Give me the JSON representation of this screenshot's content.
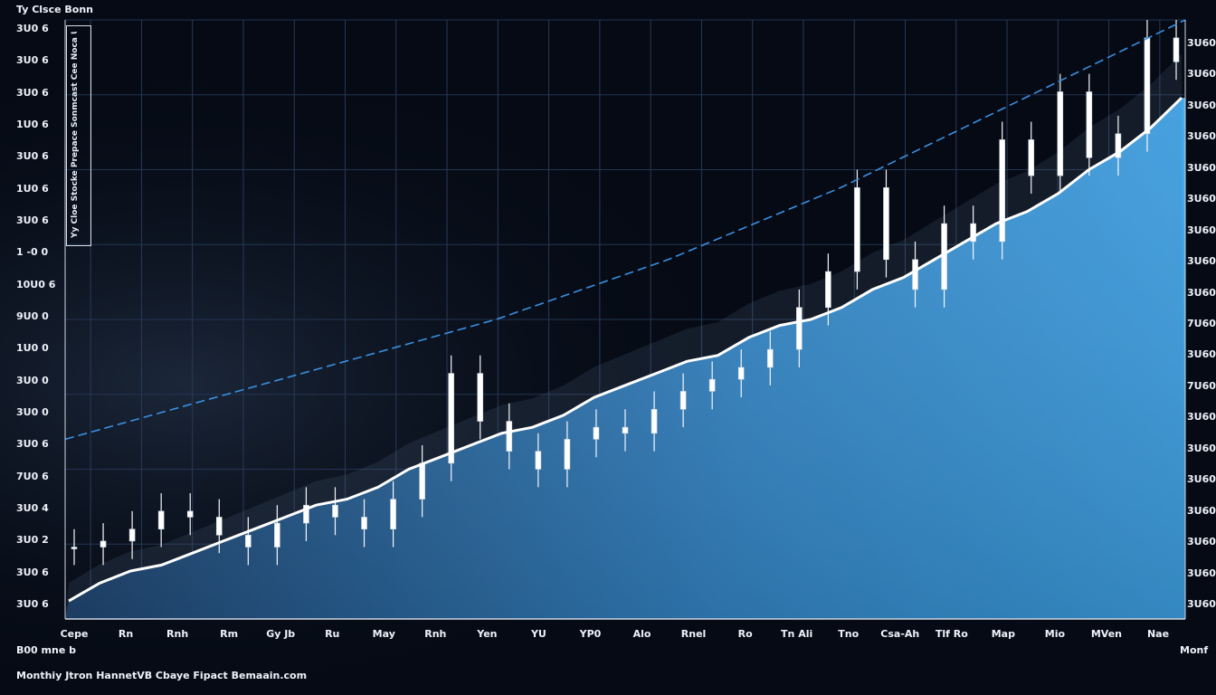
{
  "chart_data": {
    "type": "line",
    "title": "Ty Clsce Bonn",
    "y_labels_left": [
      "3U0 6",
      "3U0 6",
      "3U0 6",
      "1U0 6",
      "3U0 6",
      "1U0 6",
      "3U0 6",
      "1 -0 0",
      "10U0 6",
      "9U0 0",
      "1U0 0",
      "3U0 0",
      "3U0 0",
      "3U0 6",
      "7U0 6",
      "3U0 4",
      "3U0 2",
      "3U0 6",
      "3U0 6"
    ],
    "y_labels_right": [
      "3U60",
      "3U60",
      "3U60",
      "3U60",
      "3U60",
      "3U60",
      "3U60",
      "3U60",
      "3U60",
      "7U60",
      "3U60",
      "7U60",
      "3U60",
      "3U60",
      "3U60",
      "3U60",
      "3U60",
      "3U60",
      "3U60"
    ],
    "x_labels": [
      "Cepe",
      "Rn",
      "Rnh",
      "Rm",
      "Gy Jb",
      "Ru",
      "May",
      "Rnh",
      "Yen",
      "YU",
      "YP0",
      "Alo",
      "Rnel",
      "Ro",
      "Tn Ali",
      "Tno",
      "Csa-Ah",
      "Tlf Ro",
      "Map",
      "Mio",
      "MVen",
      "Nae"
    ],
    "legend_text": "Yy Cloe Stocke Prepace Sonmcast Cee Noca Unaks",
    "footer_left": "B00 mne b",
    "footer_right": "Monf",
    "source_text": "Monthiy Jtron HannetVB Cbaye Fipact Bemaain.com",
    "series": [
      {
        "role": "white_line",
        "color": "#ffffff",
        "values": [
          3,
          6,
          8,
          9,
          11,
          13,
          15,
          17,
          19,
          20,
          22,
          25,
          27,
          29,
          31,
          32,
          34,
          37,
          39,
          41,
          43,
          44,
          47,
          49,
          50,
          52,
          55,
          57,
          60,
          63,
          66,
          68,
          71,
          75,
          78,
          82,
          87
        ]
      },
      {
        "role": "dashed_trend",
        "color": "#3b8fe0",
        "values": [
          30,
          34,
          38,
          42,
          46,
          50,
          55,
          60,
          66,
          72,
          79,
          86,
          93,
          100
        ]
      },
      {
        "role": "candles",
        "color": "#ffffff",
        "values": [
          12,
          13,
          15,
          18,
          17,
          14,
          12,
          16,
          19,
          17,
          15,
          20,
          26,
          41,
          33,
          28,
          25,
          30,
          32,
          31,
          35,
          38,
          40,
          42,
          45,
          52,
          58,
          72,
          60,
          55,
          66,
          63,
          80,
          74,
          88,
          77,
          81,
          97,
          93
        ]
      }
    ],
    "area_color": "#2f9de8",
    "grid": true
  }
}
